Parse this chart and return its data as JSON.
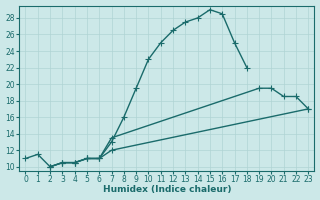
{
  "xlabel": "Humidex (Indice chaleur)",
  "xlim": [
    -0.5,
    23.5
  ],
  "ylim": [
    9.5,
    29.5
  ],
  "xticks": [
    0,
    1,
    2,
    3,
    4,
    5,
    6,
    7,
    8,
    9,
    10,
    11,
    12,
    13,
    14,
    15,
    16,
    17,
    18,
    19,
    20,
    21,
    22,
    23
  ],
  "yticks": [
    10,
    12,
    14,
    16,
    18,
    20,
    22,
    24,
    26,
    28
  ],
  "bg_color": "#cce8e8",
  "grid_color": "#b0d4d4",
  "line_color": "#1a6b6b",
  "curve1_x": [
    0,
    1,
    2,
    3,
    4,
    5,
    6,
    7,
    8,
    9,
    10,
    11,
    12,
    13,
    14,
    15,
    16,
    17,
    18
  ],
  "curve1_y": [
    11,
    11.5,
    10,
    10.5,
    10.5,
    11,
    11,
    13,
    16,
    19.5,
    23,
    25,
    26.5,
    27.5,
    28,
    29,
    28.5,
    25,
    22
  ],
  "curve2_x": [
    2,
    3,
    4,
    5,
    6,
    7,
    19,
    20,
    21,
    22,
    23
  ],
  "curve2_y": [
    10,
    10.5,
    10.5,
    11,
    11,
    13.5,
    19.5,
    19.5,
    18.5,
    18.5,
    17
  ],
  "curve3_x": [
    2,
    3,
    4,
    5,
    6,
    7,
    23
  ],
  "curve3_y": [
    10,
    10.5,
    10.5,
    11,
    11,
    12,
    17
  ],
  "marker_size": 4,
  "linewidth": 1.0
}
